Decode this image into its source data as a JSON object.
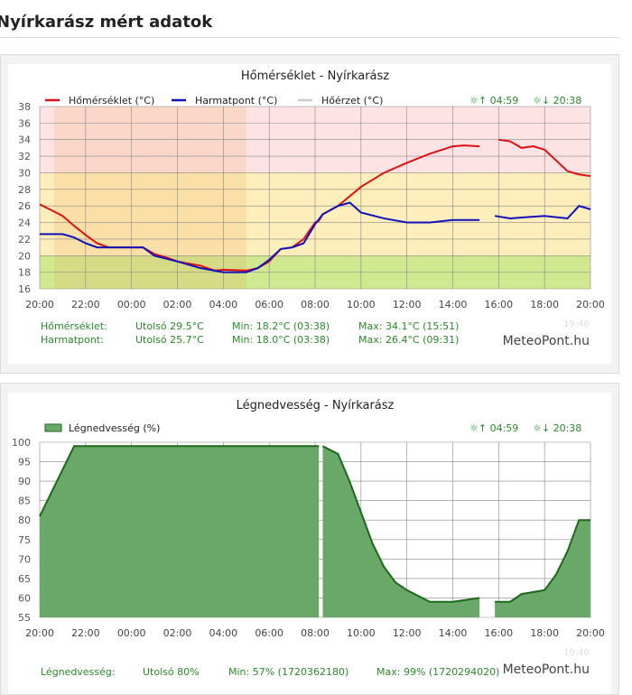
{
  "page_title": "Nyírkarász mért adatok",
  "sunrise": "☼↑ 04:59",
  "sunset": "☼↓ 20:38",
  "watermark": "MeteoPont.hu",
  "update_time": "19:40",
  "colors": {
    "temp": "#dd1111",
    "dew": "#1111bb",
    "feels": "#cccccc",
    "humidity_fill": "#6aa86a",
    "humidity_line": "#1a6a1a",
    "stats_text": "#2a8a2a",
    "band_hot": "#fde3e3",
    "band_warm": "#fdeebb",
    "band_cool": "#d0e890"
  },
  "chart_data": [
    {
      "type": "line",
      "title": "Hőmérséklet - Nyírkarász",
      "legend": [
        "Hőmérséklet (°C)",
        "Harmatpont (°C)",
        "Hőérzet (°C)"
      ],
      "ylim": [
        16,
        38
      ],
      "yticks": [
        16,
        18,
        20,
        22,
        24,
        26,
        28,
        30,
        32,
        34,
        36,
        38
      ],
      "xticks": [
        "20:00",
        "22:00",
        "00:00",
        "02:00",
        "04:00",
        "06:00",
        "08:00",
        "10:00",
        "12:00",
        "14:00",
        "16:00",
        "18:00",
        "20:00"
      ],
      "grid": true,
      "legend_position": "top",
      "series": [
        {
          "name": "Hőmérséklet (°C)",
          "points": [
            [
              "20:00",
              26.2
            ],
            [
              "20:30",
              25.5
            ],
            [
              "21:00",
              24.8
            ],
            [
              "21:30",
              23.6
            ],
            [
              "22:00",
              22.5
            ],
            [
              "22:30",
              21.5
            ],
            [
              "23:00",
              21.0
            ],
            [
              "00:00",
              21.0
            ],
            [
              "00:30",
              21.0
            ],
            [
              "01:00",
              20.2
            ],
            [
              "01:30",
              19.8
            ],
            [
              "02:00",
              19.3
            ],
            [
              "03:00",
              18.8
            ],
            [
              "03:38",
              18.2
            ],
            [
              "04:00",
              18.3
            ],
            [
              "05:00",
              18.2
            ],
            [
              "05:30",
              18.5
            ],
            [
              "06:00",
              19.3
            ],
            [
              "06:30",
              20.8
            ],
            [
              "07:00",
              21.0
            ],
            [
              "07:30",
              22.0
            ],
            [
              "08:00",
              24.0
            ],
            [
              "08:10",
              24.2
            ],
            [
              "08:20",
              25.0
            ],
            [
              "09:00",
              26.0
            ],
            [
              "10:00",
              28.3
            ],
            [
              "11:00",
              30.0
            ],
            [
              "12:00",
              31.2
            ],
            [
              "13:00",
              32.3
            ],
            [
              "14:00",
              33.2
            ],
            [
              "14:30",
              33.3
            ],
            [
              "15:10",
              33.2
            ],
            [
              "15:30",
              null
            ],
            [
              "16:00",
              34.0
            ],
            [
              "16:30",
              33.8
            ],
            [
              "17:00",
              33.0
            ],
            [
              "17:30",
              33.2
            ],
            [
              "18:00",
              32.8
            ],
            [
              "18:30",
              31.5
            ],
            [
              "19:00",
              30.2
            ],
            [
              "19:30",
              29.8
            ],
            [
              "20:00",
              29.6
            ]
          ]
        },
        {
          "name": "Harmatpont (°C)",
          "points": [
            [
              "20:00",
              22.6
            ],
            [
              "21:00",
              22.6
            ],
            [
              "21:30",
              22.2
            ],
            [
              "22:00",
              21.5
            ],
            [
              "22:30",
              21.0
            ],
            [
              "23:00",
              21.0
            ],
            [
              "00:30",
              21.0
            ],
            [
              "01:00",
              20.0
            ],
            [
              "02:00",
              19.3
            ],
            [
              "03:00",
              18.5
            ],
            [
              "04:00",
              18.0
            ],
            [
              "05:00",
              18.0
            ],
            [
              "05:30",
              18.5
            ],
            [
              "06:00",
              19.5
            ],
            [
              "06:30",
              20.8
            ],
            [
              "07:00",
              21.0
            ],
            [
              "07:30",
              21.5
            ],
            [
              "08:00",
              23.8
            ],
            [
              "08:20",
              25.0
            ],
            [
              "09:00",
              26.0
            ],
            [
              "09:31",
              26.4
            ],
            [
              "10:00",
              25.2
            ],
            [
              "11:00",
              24.5
            ],
            [
              "12:00",
              24.0
            ],
            [
              "13:00",
              24.0
            ],
            [
              "14:00",
              24.3
            ],
            [
              "15:10",
              24.3
            ],
            [
              "15:30",
              null
            ],
            [
              "15:50",
              24.8
            ],
            [
              "16:30",
              24.5
            ],
            [
              "17:00",
              24.6
            ],
            [
              "18:00",
              24.8
            ],
            [
              "19:00",
              24.5
            ],
            [
              "19:30",
              26.0
            ],
            [
              "20:00",
              25.6
            ]
          ]
        }
      ],
      "stats": [
        {
          "label": "Hőmérséklet:",
          "last": "Utolsó 29.5°C",
          "min": "Min: 18.2°C (03:38)",
          "max": "Max: 34.1°C (15:51)"
        },
        {
          "label": "Harmatpont:",
          "last": "Utolsó 25.7°C",
          "min": "Min: 18.0°C (03:38)",
          "max": "Max: 26.4°C (09:31)"
        }
      ]
    },
    {
      "type": "area",
      "title": "Légnedvesség - Nyírkarász",
      "legend": [
        "Légnedvesség (%)"
      ],
      "ylim": [
        55,
        100
      ],
      "yticks": [
        55,
        60,
        65,
        70,
        75,
        80,
        85,
        90,
        95,
        100
      ],
      "xticks": [
        "20:00",
        "22:00",
        "00:00",
        "02:00",
        "04:00",
        "06:00",
        "08:00",
        "10:00",
        "12:00",
        "14:00",
        "16:00",
        "18:00",
        "20:00"
      ],
      "grid": true,
      "legend_position": "top",
      "series": [
        {
          "name": "Légnedvesség (%)",
          "points": [
            [
              "20:00",
              81
            ],
            [
              "20:30",
              87
            ],
            [
              "21:00",
              93
            ],
            [
              "21:30",
              99
            ],
            [
              "08:10",
              99
            ],
            [
              "08:15",
              null
            ],
            [
              "08:20",
              99
            ],
            [
              "09:00",
              97
            ],
            [
              "09:30",
              90
            ],
            [
              "10:00",
              82
            ],
            [
              "10:30",
              74
            ],
            [
              "11:00",
              68
            ],
            [
              "11:30",
              64
            ],
            [
              "12:00",
              62
            ],
            [
              "13:00",
              59
            ],
            [
              "14:00",
              59
            ],
            [
              "15:10",
              60
            ],
            [
              "15:30",
              null
            ],
            [
              "15:50",
              59
            ],
            [
              "16:30",
              59
            ],
            [
              "17:00",
              61
            ],
            [
              "18:00",
              62
            ],
            [
              "18:30",
              66
            ],
            [
              "19:00",
              72
            ],
            [
              "19:30",
              80
            ],
            [
              "20:00",
              80
            ]
          ]
        }
      ],
      "stats": [
        {
          "label": "Légnedvesség:",
          "last": "Utolsó 80%",
          "min": "Min: 57% (1720362180)",
          "max": "Max: 99% (1720294020)"
        }
      ]
    }
  ]
}
